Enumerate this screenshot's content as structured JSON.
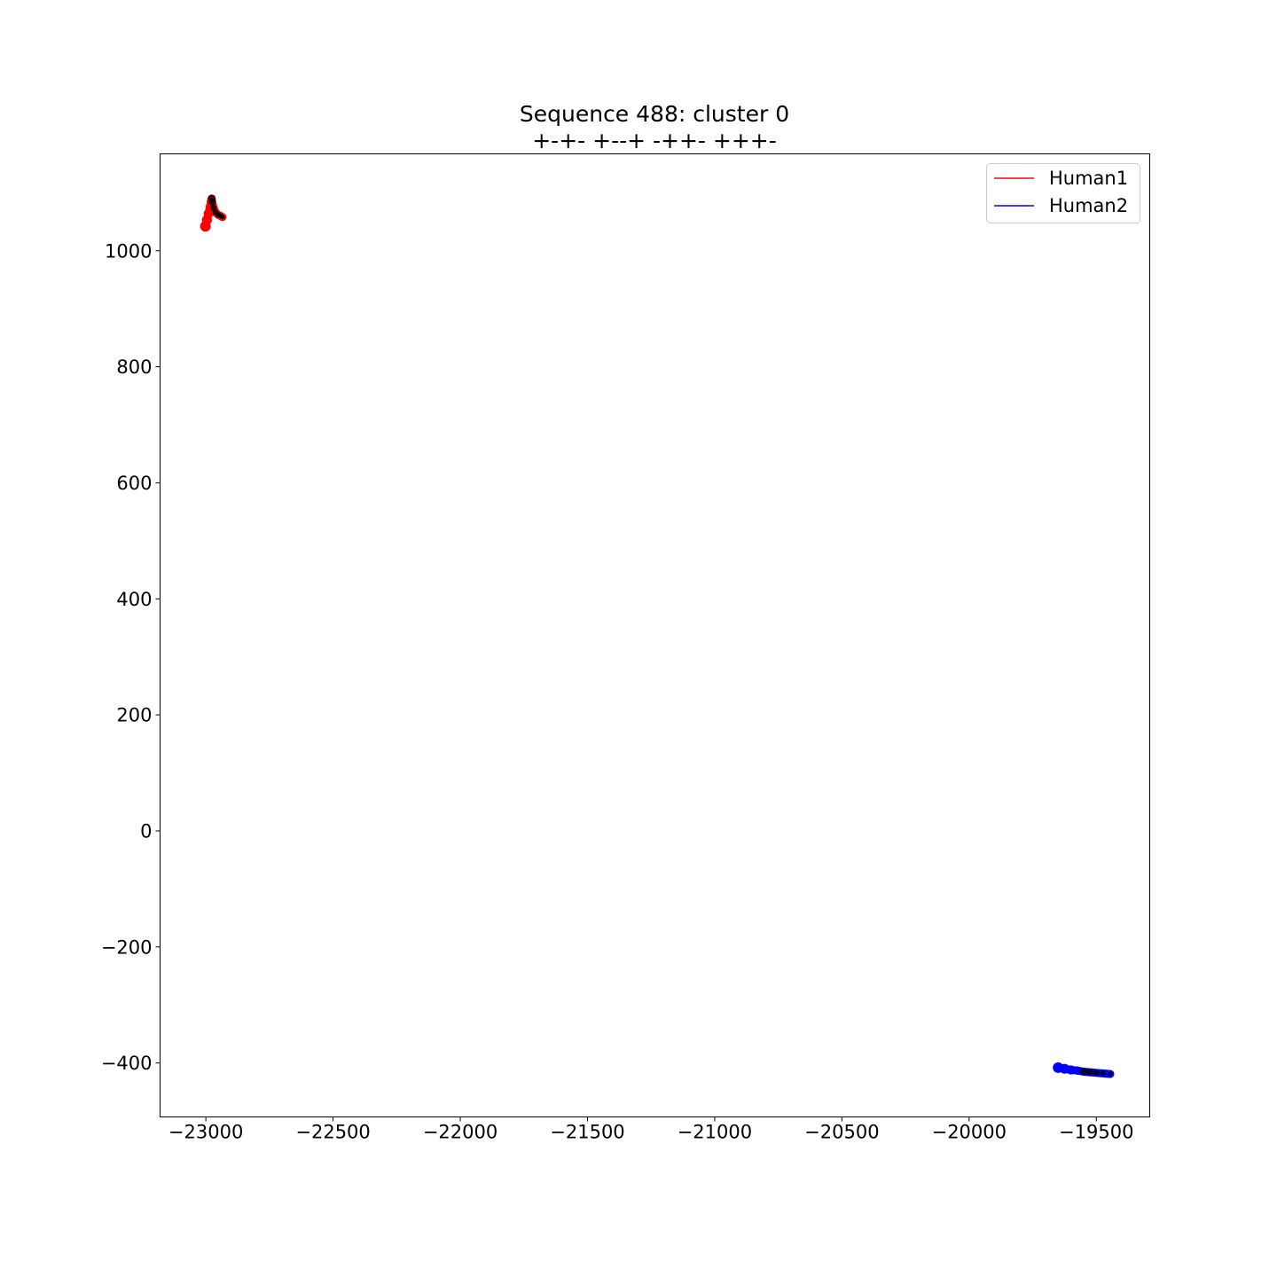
{
  "chart_data": {
    "type": "line",
    "title": "Sequence 488: cluster 0",
    "subtitle": "+-+- +--+ -++- +++-",
    "xlabel": "",
    "ylabel": "",
    "xlim": [
      -23180,
      -19290
    ],
    "ylim": [
      -493,
      1167
    ],
    "x_ticks": [
      -23000,
      -22500,
      -22000,
      -21500,
      -21000,
      -20500,
      -20000,
      -19500
    ],
    "x_tick_labels": [
      "−23000",
      "−22500",
      "−22000",
      "−21500",
      "−21000",
      "−20500",
      "−20000",
      "−19500"
    ],
    "y_ticks": [
      -400,
      -200,
      0,
      200,
      400,
      600,
      800,
      1000
    ],
    "y_tick_labels": [
      "−400",
      "−200",
      "0",
      "200",
      "400",
      "600",
      "800",
      "1000"
    ],
    "grid": false,
    "legend_position": "top-right",
    "series": [
      {
        "name": "Human1",
        "color": "#ff0000",
        "x": [
          -23002,
          -22996,
          -22990,
          -22984,
          -22980,
          -22977,
          -22975,
          -22970,
          -22962,
          -22952,
          -22942,
          -22935
        ],
        "y": [
          1042,
          1053,
          1064,
          1075,
          1085,
          1090,
          1084,
          1074,
          1066,
          1062,
          1060,
          1058
        ]
      },
      {
        "name": "Human2",
        "color": "#0000ff",
        "x": [
          -19650,
          -19625,
          -19600,
          -19575,
          -19550,
          -19525,
          -19500,
          -19475,
          -19445
        ],
        "y": [
          -408,
          -410,
          -412,
          -413,
          -415,
          -416,
          -417,
          -418,
          -419
        ]
      }
    ]
  }
}
